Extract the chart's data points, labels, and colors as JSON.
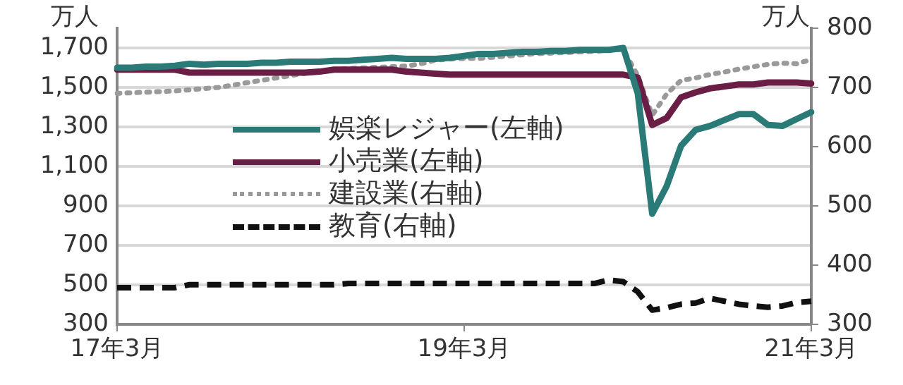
{
  "chart_data": {
    "type": "line",
    "ylabel": "万人",
    "y2label": "万人",
    "categories": [
      "17年3月",
      null,
      null,
      null,
      null,
      null,
      null,
      null,
      null,
      null,
      null,
      null,
      null,
      null,
      null,
      null,
      null,
      null,
      null,
      null,
      null,
      null,
      null,
      null,
      "19年3月",
      null,
      null,
      null,
      null,
      null,
      null,
      null,
      null,
      null,
      null,
      null,
      null,
      null,
      null,
      null,
      null,
      null,
      null,
      null,
      null,
      null,
      null,
      null,
      "21年3月"
    ],
    "series": [
      {
        "name": "娯楽レジャー(左軸)",
        "color": "#2a7b78",
        "line_style": "solid",
        "axis": "y",
        "values": [
          1600,
          1600,
          1605,
          1605,
          1610,
          1620,
          1615,
          1620,
          1620,
          1620,
          1625,
          1625,
          1630,
          1630,
          1630,
          1635,
          1635,
          1640,
          1645,
          1650,
          1645,
          1645,
          1645,
          1650,
          1660,
          1670,
          1670,
          1675,
          1680,
          1680,
          1685,
          1685,
          1690,
          1690,
          1690,
          1700,
          1470,
          860,
          1000,
          1205,
          1285,
          1305,
          1335,
          1365,
          1365,
          1310,
          1305,
          1340,
          1375
        ]
      },
      {
        "name": "小売業(左軸)",
        "color": "#6b1e45",
        "line_style": "solid",
        "axis": "y",
        "values": [
          1590,
          1590,
          1590,
          1590,
          1590,
          1575,
          1575,
          1575,
          1575,
          1575,
          1575,
          1575,
          1575,
          1575,
          1580,
          1590,
          1590,
          1590,
          1590,
          1590,
          1580,
          1575,
          1570,
          1565,
          1565,
          1565,
          1565,
          1565,
          1565,
          1565,
          1565,
          1565,
          1565,
          1565,
          1565,
          1565,
          1550,
          1310,
          1345,
          1450,
          1475,
          1495,
          1505,
          1515,
          1515,
          1525,
          1525,
          1525,
          1520
        ]
      },
      {
        "name": "建設業(右軸)",
        "color": "#9a9a9a",
        "line_style": "dotted",
        "axis": "y2",
        "values": [
          690,
          691,
          692,
          693,
          694,
          696,
          698,
          700,
          704,
          708,
          712,
          716,
          720,
          724,
          727,
          730,
          732,
          733,
          734,
          735,
          736,
          740,
          746,
          748,
          749,
          749,
          751,
          753,
          755,
          757,
          758,
          759,
          760,
          761,
          763,
          764,
          720,
          653,
          689,
          712,
          716,
          722,
          726,
          731,
          735,
          739,
          741,
          740,
          747
        ]
      },
      {
        "name": "教育(右軸)",
        "color": "#111111",
        "line_style": "dashed",
        "axis": "y2",
        "values": [
          362,
          362,
          362,
          362,
          362,
          367,
          367,
          367,
          367,
          367,
          367,
          367,
          367,
          367,
          367,
          367,
          369,
          369,
          369,
          369,
          369,
          369,
          369,
          369,
          369,
          369,
          369,
          369,
          369,
          369,
          369,
          369,
          369,
          369,
          375,
          372,
          355,
          324,
          328,
          334,
          336,
          344,
          339,
          334,
          331,
          329,
          331,
          337,
          339
        ]
      }
    ],
    "ylim": [
      300,
      1800
    ],
    "yticks": [
      {
        "value": 300,
        "label": "300"
      },
      {
        "value": 500,
        "label": "500"
      },
      {
        "value": 700,
        "label": "700"
      },
      {
        "value": 900,
        "label": "900"
      },
      {
        "value": 1100,
        "label": "1,100"
      },
      {
        "value": 1300,
        "label": "1,300"
      },
      {
        "value": 1500,
        "label": "1,500"
      },
      {
        "value": 1700,
        "label": "1,700"
      }
    ],
    "y2lim": [
      300,
      800
    ],
    "y2ticks": [
      300,
      400,
      500,
      600,
      700,
      800
    ],
    "grid": "y",
    "legend": "center",
    "marker": "none"
  }
}
